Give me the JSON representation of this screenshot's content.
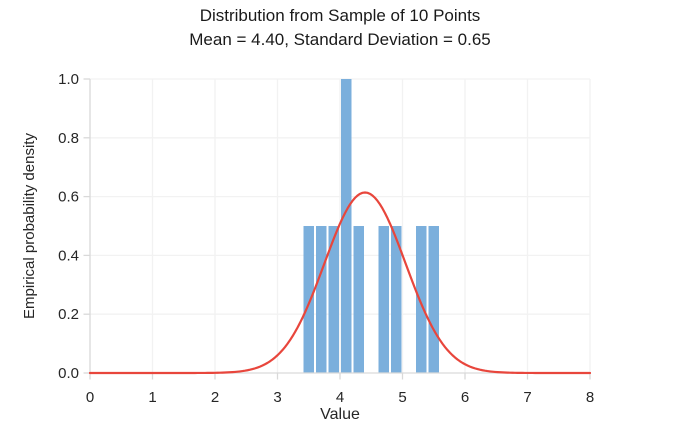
{
  "chart_data": {
    "type": "histogram+line",
    "title": "Distribution from Sample of 10 Points",
    "subtitle": "Mean = 4.40, Standard Deviation = 0.65",
    "sample_size": 10,
    "mean": 4.4,
    "std_dev": 0.65,
    "xlabel": "Value",
    "ylabel": "Empirical probability density",
    "xlim": [
      0,
      8
    ],
    "ylim": [
      0,
      1.0
    ],
    "x_tick_values": [
      0,
      1,
      2,
      3,
      4,
      5,
      6,
      7,
      8
    ],
    "x_tick_labels": [
      "0",
      "1",
      "2",
      "3",
      "4",
      "5",
      "6",
      "7",
      "8"
    ],
    "y_tick_values": [
      0,
      0.2,
      0.4,
      0.6,
      0.8,
      1.0
    ],
    "y_tick_labels": [
      "0.0",
      "0.2",
      "0.4",
      "0.6",
      "0.8",
      "1.0"
    ],
    "grid": true,
    "legend": "none",
    "histogram": {
      "bin_width": 0.2,
      "bars": [
        {
          "x0": 3.4,
          "x1": 3.6,
          "density": 0.5
        },
        {
          "x0": 3.6,
          "x1": 3.8,
          "density": 0.5
        },
        {
          "x0": 3.8,
          "x1": 4.0,
          "density": 0.5
        },
        {
          "x0": 4.0,
          "x1": 4.2,
          "density": 1.0
        },
        {
          "x0": 4.2,
          "x1": 4.4,
          "density": 0.5
        },
        {
          "x0": 4.6,
          "x1": 4.8,
          "density": 0.5
        },
        {
          "x0": 4.8,
          "x1": 5.0,
          "density": 0.5
        },
        {
          "x0": 5.2,
          "x1": 5.4,
          "density": 0.5
        },
        {
          "x0": 5.4,
          "x1": 5.6,
          "density": 0.5
        }
      ]
    },
    "normal_curve": {
      "mean": 4.4,
      "std": 0.65,
      "peak_density": 0.614
    },
    "style": {
      "bar_color": "#7bafdc",
      "curve_color": "#e8463c",
      "grid_color": "#f2f2f2",
      "axis_color": "#d9d9d9",
      "text_color": "#262626",
      "background_color": "#ffffff"
    }
  }
}
